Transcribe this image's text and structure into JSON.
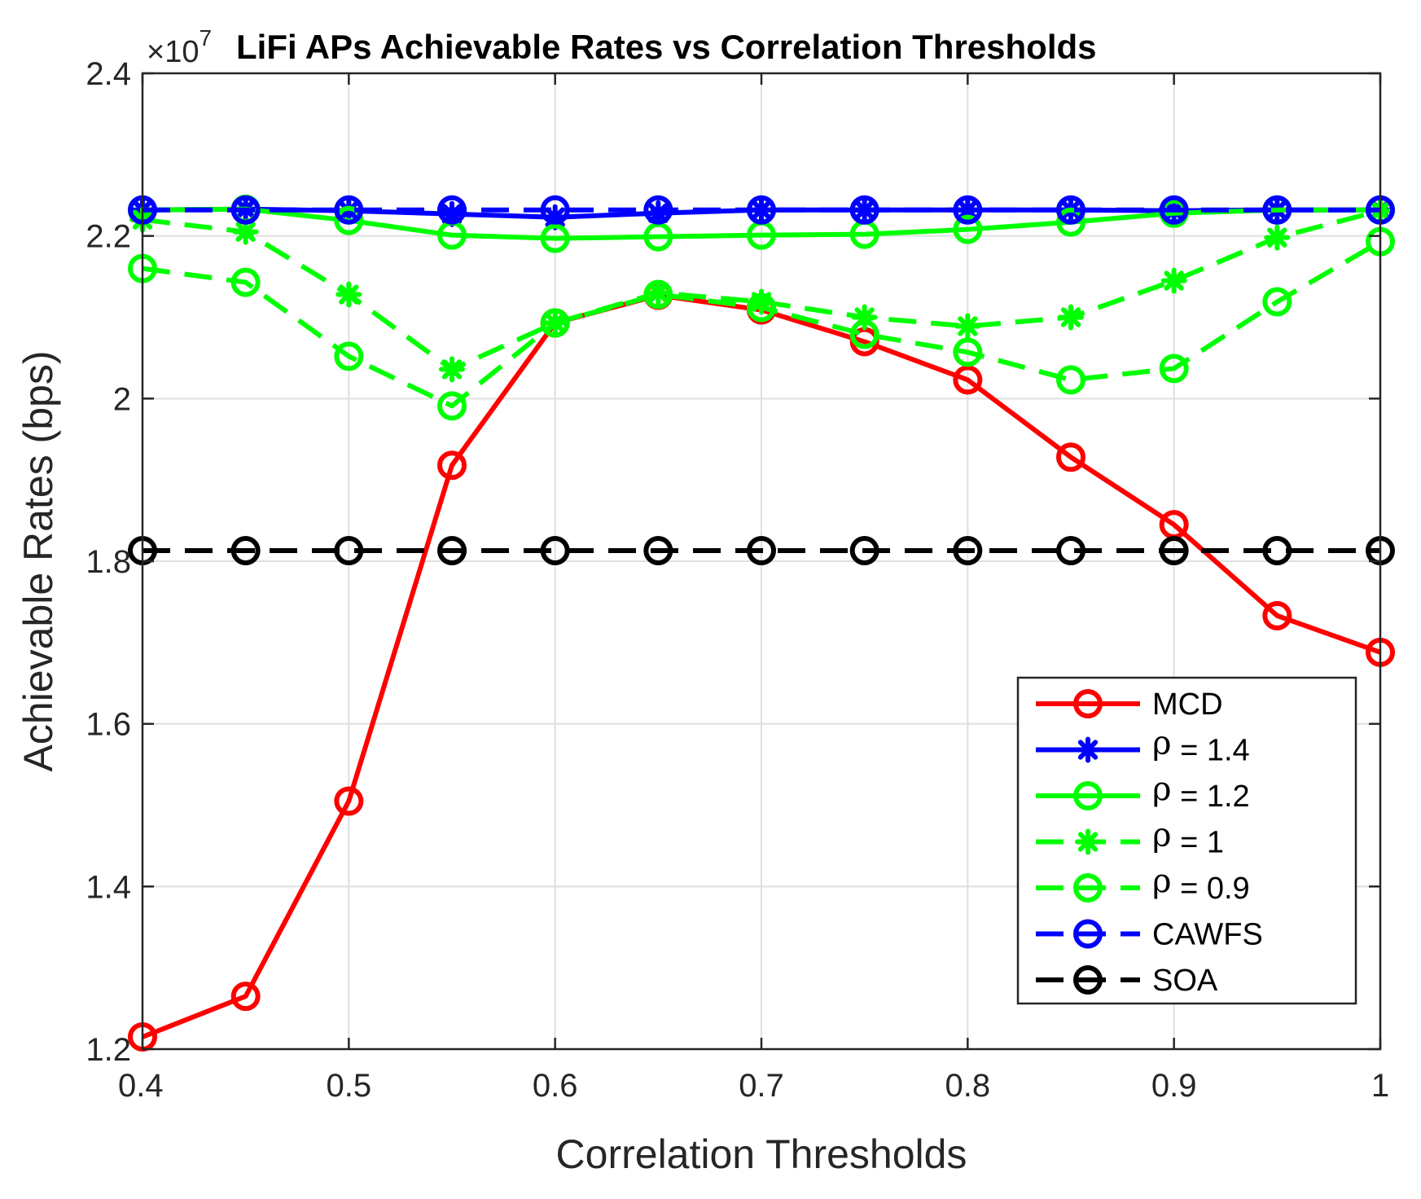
{
  "chart_data": {
    "type": "line",
    "title": "LiFi APs Achievable Rates vs Correlation Thresholds",
    "xlabel": "Correlation Thresholds",
    "ylabel": "Achievable Rates (bps)",
    "y_multiplier": {
      "base": "×10",
      "exponent": "7"
    },
    "xlim": [
      0.4,
      1.0
    ],
    "ylim": [
      1.2,
      2.4
    ],
    "xticks": [
      "0.4",
      "0.5",
      "0.6",
      "0.7",
      "0.8",
      "0.9",
      "1"
    ],
    "yticks": [
      "1.2",
      "1.4",
      "1.6",
      "1.8",
      "2",
      "2.2",
      "2.4"
    ],
    "grid": true,
    "legend_position": "bottom-right",
    "x": [
      0.4,
      0.45,
      0.5,
      0.55,
      0.6,
      0.65,
      0.7,
      0.75,
      0.8,
      0.85,
      0.9,
      0.95,
      1.0
    ],
    "series": [
      {
        "name": "MCD",
        "symbol": "",
        "suffix": "",
        "color": "#ff0000",
        "dash": "solid",
        "marker": "circle",
        "values": [
          1.215,
          1.265,
          1.505,
          1.918,
          2.093,
          2.127,
          2.109,
          2.07,
          2.023,
          1.928,
          1.845,
          1.733,
          1.688
        ]
      },
      {
        "name": "ρ = 1.4",
        "symbol": "ρ",
        "suffix": " = 1.4",
        "color": "#0000ff",
        "dash": "solid",
        "marker": "asterisk",
        "values": [
          2.232,
          2.233,
          2.231,
          2.227,
          2.223,
          2.228,
          2.232,
          2.232,
          2.232,
          2.232,
          2.231,
          2.232,
          2.232
        ]
      },
      {
        "name": "ρ = 1.2",
        "symbol": "ρ",
        "suffix": " = 1.2",
        "color": "#00ff00",
        "dash": "solid",
        "marker": "circle",
        "values": [
          2.232,
          2.233,
          2.219,
          2.201,
          2.197,
          2.199,
          2.201,
          2.202,
          2.208,
          2.217,
          2.228,
          2.232,
          2.232
        ]
      },
      {
        "name": "ρ = 1",
        "symbol": "ρ",
        "suffix": " = 1",
        "color": "#00ff00",
        "dash": "dashed",
        "marker": "asterisk",
        "values": [
          2.22,
          2.205,
          2.128,
          2.036,
          2.093,
          2.13,
          2.119,
          2.1,
          2.089,
          2.1,
          2.145,
          2.198,
          2.231
        ]
      },
      {
        "name": "ρ = 0.9",
        "symbol": "ρ",
        "suffix": " = 0.9",
        "color": "#00ff00",
        "dash": "dashed",
        "marker": "circle",
        "values": [
          2.16,
          2.143,
          2.052,
          1.991,
          2.093,
          2.128,
          2.112,
          2.079,
          2.057,
          2.023,
          2.037,
          2.119,
          2.193
        ]
      },
      {
        "name": "CAWFS",
        "symbol": "",
        "suffix": "",
        "color": "#0000ff",
        "dash": "dashed",
        "marker": "circle",
        "values": [
          2.232,
          2.232,
          2.232,
          2.232,
          2.232,
          2.232,
          2.232,
          2.232,
          2.232,
          2.232,
          2.232,
          2.232,
          2.232
        ]
      },
      {
        "name": "SOA",
        "symbol": "",
        "suffix": "",
        "color": "#000000",
        "dash": "dashed",
        "marker": "circle",
        "values": [
          1.813,
          1.813,
          1.813,
          1.813,
          1.813,
          1.813,
          1.813,
          1.813,
          1.813,
          1.813,
          1.813,
          1.813,
          1.813
        ]
      }
    ]
  }
}
